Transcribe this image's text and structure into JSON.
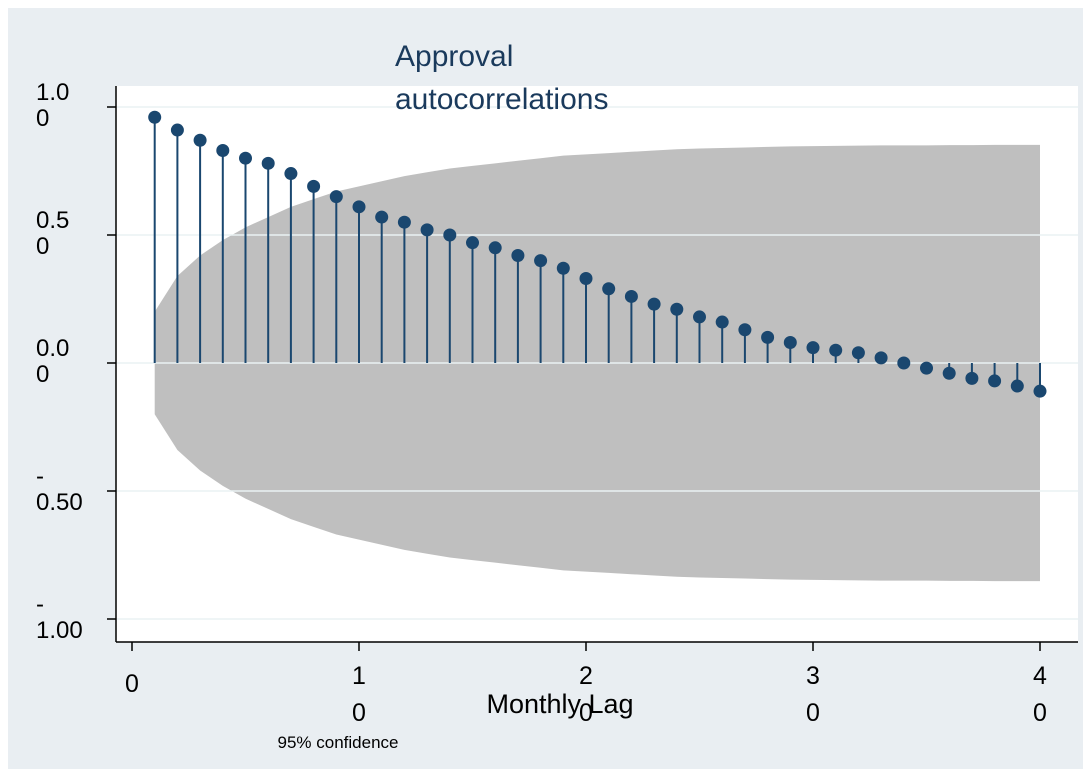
{
  "chart_data": {
    "type": "scatter",
    "title": "Approval autocorrelations",
    "xlabel": "Monthly Lag",
    "ylabel": "",
    "note": "95% confidence",
    "xlim": [
      0,
      40
    ],
    "ylim": [
      -1,
      1
    ],
    "x_ticks": [
      0,
      10,
      20,
      30,
      40
    ],
    "x_tick_labels": [
      "0",
      "1\n0",
      "2\n0",
      "3\n0",
      "4\n0"
    ],
    "y_ticks": [
      1,
      0.5,
      0,
      -0.5,
      -1
    ],
    "y_tick_labels": [
      "1.0\n0",
      "0.5\n0",
      "0.0\n0",
      "-\n0.50",
      "-\n1.00"
    ],
    "grid": true,
    "series": [
      {
        "values": {
          "x": [
            1,
            2,
            3,
            4,
            5,
            6,
            7,
            8,
            9,
            10,
            11,
            12,
            13,
            14,
            15,
            16,
            17,
            18,
            19,
            20,
            21,
            22,
            23,
            24,
            25,
            26,
            27,
            28,
            29,
            30,
            31,
            32,
            33,
            34,
            35,
            36,
            37,
            38,
            39,
            40
          ],
          "y": [
            0.96,
            0.91,
            0.87,
            0.83,
            0.8,
            0.78,
            0.74,
            0.69,
            0.65,
            0.61,
            0.57,
            0.55,
            0.52,
            0.5,
            0.47,
            0.45,
            0.42,
            0.4,
            0.37,
            0.33,
            0.29,
            0.26,
            0.23,
            0.21,
            0.18,
            0.16,
            0.13,
            0.1,
            0.08,
            0.06,
            0.05,
            0.04,
            0.02,
            0.0,
            -0.02,
            -0.04,
            -0.06,
            -0.07,
            -0.09,
            -0.11
          ]
        }
      }
    ],
    "confidence_band": {
      "x": [
        1,
        2,
        3,
        4,
        5,
        6,
        7,
        8,
        9,
        10,
        11,
        12,
        13,
        14,
        15,
        16,
        17,
        18,
        19,
        20,
        21,
        22,
        23,
        24,
        25,
        26,
        27,
        28,
        29,
        30,
        31,
        32,
        33,
        34,
        35,
        36,
        37,
        38,
        39,
        40
      ],
      "upper": [
        0.2,
        0.34,
        0.42,
        0.48,
        0.53,
        0.57,
        0.61,
        0.64,
        0.67,
        0.69,
        0.71,
        0.73,
        0.745,
        0.76,
        0.77,
        0.78,
        0.79,
        0.8,
        0.81,
        0.815,
        0.82,
        0.825,
        0.83,
        0.835,
        0.838,
        0.84,
        0.842,
        0.844,
        0.846,
        0.847,
        0.848,
        0.849,
        0.85,
        0.85,
        0.85,
        0.851,
        0.851,
        0.852,
        0.852,
        0.852
      ],
      "lower": [
        -0.2,
        -0.34,
        -0.42,
        -0.48,
        -0.53,
        -0.57,
        -0.61,
        -0.64,
        -0.67,
        -0.69,
        -0.71,
        -0.73,
        -0.745,
        -0.76,
        -0.77,
        -0.78,
        -0.79,
        -0.8,
        -0.81,
        -0.815,
        -0.82,
        -0.825,
        -0.83,
        -0.835,
        -0.838,
        -0.84,
        -0.842,
        -0.844,
        -0.846,
        -0.847,
        -0.848,
        -0.849,
        -0.85,
        -0.85,
        -0.85,
        -0.851,
        -0.851,
        -0.852,
        -0.852,
        -0.852
      ]
    },
    "colors": {
      "outer_background": "#e9eef2",
      "plot_background": "#ffffff",
      "band": "#bfbfbf",
      "series": "#1a476f",
      "title": "#1a3a5c",
      "grid": "#eaf2f3"
    }
  }
}
